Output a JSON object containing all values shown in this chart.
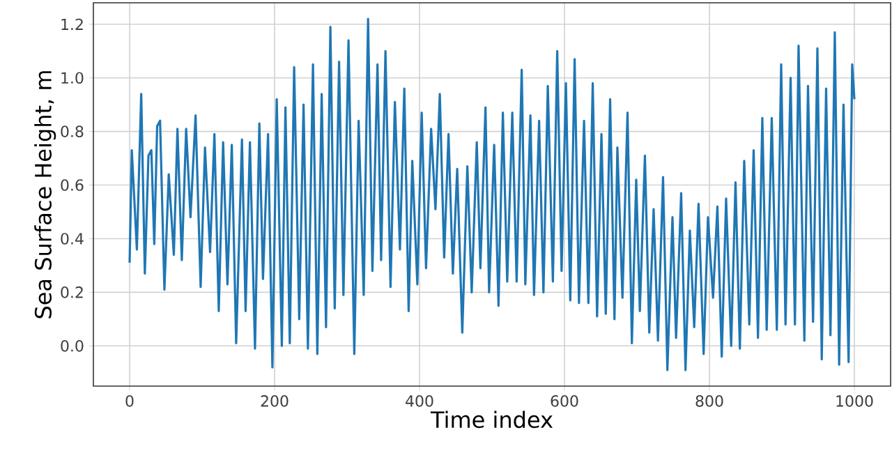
{
  "chart_data": {
    "type": "line",
    "xlabel": "Time index",
    "ylabel": "Sea Surface Height, m",
    "xlim": [
      -50,
      1050
    ],
    "ylim": [
      -0.15,
      1.28
    ],
    "xticks": [
      0,
      200,
      400,
      600,
      800,
      1000
    ],
    "yticks": [
      {
        "value": 0,
        "label": "0.0"
      },
      {
        "value": 0.2,
        "label": "0.2"
      },
      {
        "value": 0.4,
        "label": "0.4"
      },
      {
        "value": 0.6,
        "label": "0.6"
      },
      {
        "value": 0.8,
        "label": "0.8"
      },
      {
        "value": 1.0,
        "label": "1.0"
      },
      {
        "value": 1.2,
        "label": "1.2"
      }
    ],
    "grid": true,
    "line_style": "solid",
    "x": [
      0,
      3,
      10,
      16,
      21,
      26,
      30,
      34,
      38,
      42,
      48,
      54,
      61,
      66,
      72,
      78,
      84,
      91,
      98,
      104,
      111,
      117,
      123,
      129,
      135,
      141,
      147,
      155,
      160,
      166,
      173,
      179,
      184,
      191,
      197,
      203,
      210,
      215,
      221,
      227,
      234,
      240,
      246,
      253,
      259,
      265,
      271,
      277,
      283,
      289,
      295,
      302,
      310,
      316,
      323,
      329,
      335,
      342,
      347,
      353,
      360,
      366,
      373,
      379,
      385,
      390,
      397,
      403,
      409,
      416,
      422,
      428,
      434,
      440,
      446,
      452,
      459,
      466,
      472,
      479,
      484,
      491,
      496,
      503,
      509,
      515,
      521,
      528,
      534,
      541,
      546,
      553,
      558,
      565,
      571,
      577,
      584,
      590,
      596,
      602,
      608,
      614,
      620,
      627,
      633,
      639,
      645,
      651,
      657,
      663,
      669,
      673,
      680,
      687,
      693,
      699,
      704,
      711,
      717,
      723,
      729,
      736,
      742,
      749,
      754,
      761,
      767,
      773,
      779,
      785,
      792,
      798,
      805,
      811,
      817,
      823,
      830,
      836,
      842,
      848,
      855,
      861,
      867,
      873,
      879,
      886,
      893,
      899,
      905,
      912,
      918,
      923,
      931,
      936,
      943,
      949,
      955,
      961,
      967,
      973,
      979,
      985,
      992,
      997,
      1000
    ],
    "series": [
      {
        "color": "#1f77b4",
        "values": [
          0.31,
          0.73,
          0.36,
          0.94,
          0.27,
          0.71,
          0.73,
          0.38,
          0.82,
          0.84,
          0.21,
          0.64,
          0.34,
          0.81,
          0.32,
          0.81,
          0.48,
          0.86,
          0.22,
          0.74,
          0.35,
          0.79,
          0.13,
          0.76,
          0.23,
          0.75,
          0.01,
          0.77,
          0.13,
          0.76,
          -0.01,
          0.83,
          0.25,
          0.79,
          -0.08,
          0.92,
          0.0,
          0.89,
          0.01,
          1.04,
          0.1,
          0.9,
          -0.01,
          1.05,
          -0.03,
          0.94,
          0.07,
          1.19,
          0.14,
          1.06,
          0.19,
          1.14,
          -0.03,
          0.84,
          0.19,
          1.22,
          0.28,
          1.05,
          0.32,
          1.1,
          0.22,
          0.91,
          0.36,
          0.96,
          0.13,
          0.69,
          0.23,
          0.87,
          0.29,
          0.81,
          0.51,
          0.94,
          0.33,
          0.79,
          0.27,
          0.66,
          0.05,
          0.67,
          0.2,
          0.76,
          0.29,
          0.89,
          0.2,
          0.75,
          0.15,
          0.87,
          0.24,
          0.87,
          0.24,
          1.03,
          0.23,
          0.86,
          0.19,
          0.84,
          0.2,
          0.97,
          0.24,
          1.1,
          0.28,
          0.98,
          0.17,
          1.07,
          0.16,
          0.84,
          0.16,
          0.98,
          0.11,
          0.79,
          0.12,
          0.92,
          0.1,
          0.74,
          0.18,
          0.87,
          0.01,
          0.62,
          0.13,
          0.71,
          0.05,
          0.51,
          0.02,
          0.63,
          -0.09,
          0.48,
          0.03,
          0.57,
          -0.09,
          0.43,
          0.07,
          0.53,
          -0.03,
          0.48,
          0.18,
          0.52,
          -0.04,
          0.55,
          0.0,
          0.61,
          -0.01,
          0.69,
          0.08,
          0.73,
          0.03,
          0.85,
          0.06,
          0.85,
          0.06,
          1.05,
          0.08,
          1.0,
          0.08,
          1.12,
          0.02,
          0.97,
          0.09,
          1.11,
          -0.05,
          0.96,
          0.04,
          1.17,
          -0.07,
          0.9,
          -0.06,
          1.05,
          0.92
        ]
      }
    ]
  }
}
